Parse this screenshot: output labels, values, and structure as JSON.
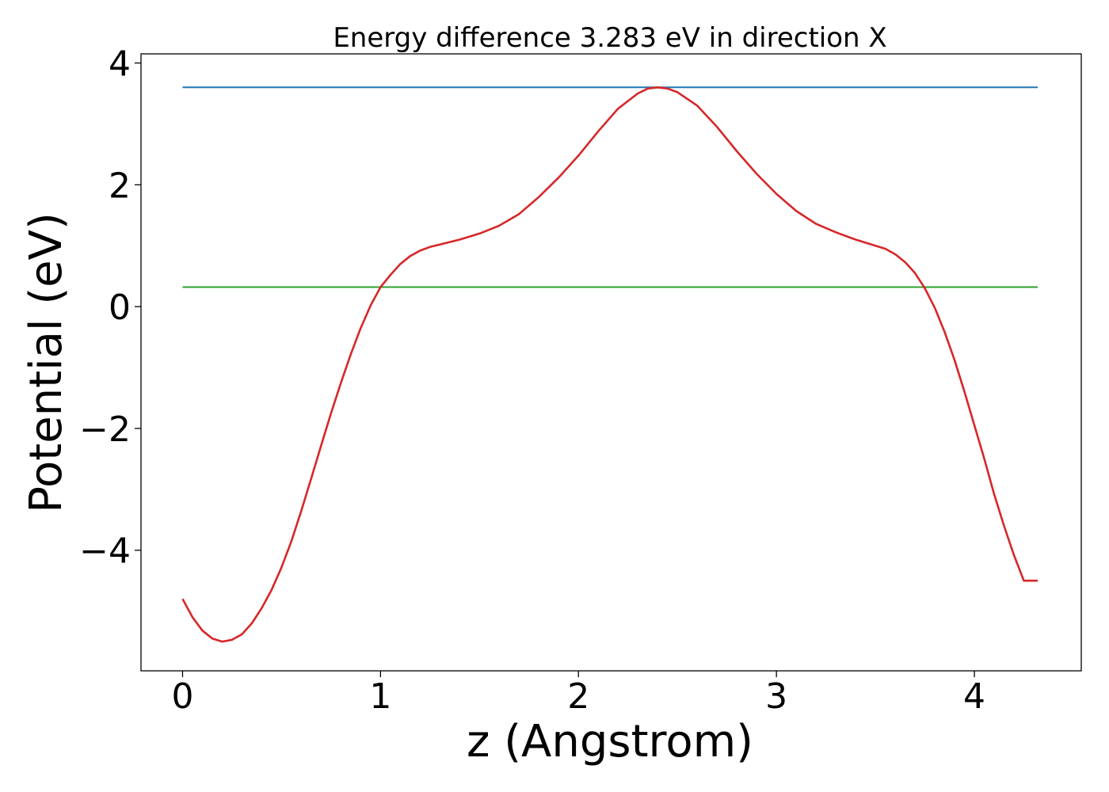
{
  "chart_data": {
    "type": "line",
    "title": "Energy difference 3.283 eV in direction X",
    "xlabel": "z (Angstrom)",
    "ylabel": "Potential (eV)",
    "xlim": [
      -0.21,
      4.54
    ],
    "ylim": [
      -5.98,
      4.15
    ],
    "xticks": [
      0,
      1,
      2,
      3,
      4
    ],
    "xtick_labels": [
      "0",
      "1",
      "2",
      "3",
      "4"
    ],
    "yticks": [
      -4,
      -2,
      0,
      2,
      4
    ],
    "ytick_labels": [
      "−4",
      "−2",
      "0",
      "2",
      "4"
    ],
    "grid": false,
    "series": [
      {
        "color": "#1f77b4",
        "x": [
          0,
          4.32
        ],
        "y": [
          3.6,
          3.6
        ]
      },
      {
        "color": "#2ca02c",
        "x": [
          0,
          4.32
        ],
        "y": [
          0.32,
          0.32
        ]
      },
      {
        "color": "#d62728",
        "x": [
          0,
          0.05,
          0.1,
          0.15,
          0.2,
          0.25,
          0.3,
          0.35,
          0.4,
          0.45,
          0.5,
          0.55,
          0.6,
          0.65,
          0.7,
          0.75,
          0.8,
          0.85,
          0.9,
          0.95,
          1.0,
          1.05,
          1.1,
          1.15,
          1.2,
          1.25,
          1.3,
          1.4,
          1.5,
          1.6,
          1.7,
          1.8,
          1.9,
          2.0,
          2.1,
          2.2,
          2.3,
          2.35,
          2.4,
          2.45,
          2.5,
          2.6,
          2.7,
          2.8,
          2.9,
          3.0,
          3.1,
          3.2,
          3.3,
          3.4,
          3.5,
          3.55,
          3.6,
          3.65,
          3.7,
          3.75,
          3.8,
          3.85,
          3.9,
          3.95,
          4.0,
          4.05,
          4.1,
          4.15,
          4.2,
          4.25,
          4.32
        ],
        "y": [
          -4.8,
          -5.1,
          -5.32,
          -5.45,
          -5.5,
          -5.47,
          -5.38,
          -5.2,
          -4.95,
          -4.65,
          -4.28,
          -3.85,
          -3.35,
          -2.82,
          -2.28,
          -1.75,
          -1.25,
          -0.78,
          -0.35,
          0.02,
          0.32,
          0.52,
          0.7,
          0.83,
          0.92,
          0.98,
          1.02,
          1.1,
          1.2,
          1.33,
          1.52,
          1.8,
          2.12,
          2.48,
          2.88,
          3.25,
          3.5,
          3.58,
          3.6,
          3.58,
          3.52,
          3.3,
          2.95,
          2.55,
          2.18,
          1.85,
          1.57,
          1.36,
          1.22,
          1.1,
          1.0,
          0.95,
          0.86,
          0.73,
          0.55,
          0.3,
          -0.02,
          -0.42,
          -0.88,
          -1.4,
          -1.95,
          -2.5,
          -3.08,
          -3.6,
          -4.08,
          -4.5,
          -4.5
        ]
      }
    ]
  }
}
